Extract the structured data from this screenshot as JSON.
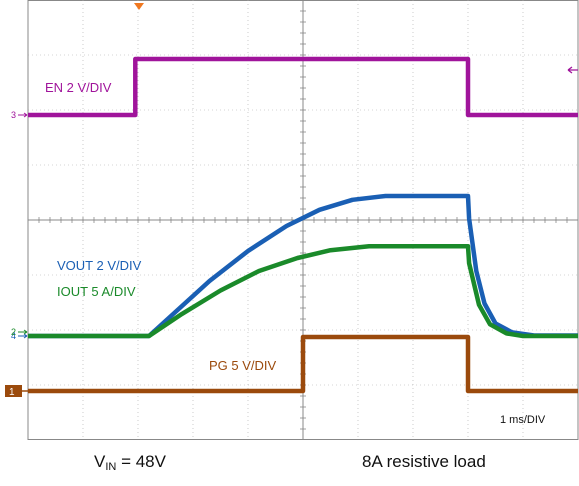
{
  "chart_data": {
    "type": "line",
    "timebase": "1 ms/DIV",
    "xlim": [
      0,
      10
    ],
    "x_unit": "ms",
    "grid": true,
    "grid_divisions": {
      "x": 10,
      "y": 8
    },
    "series": [
      {
        "label": "EN 2 V/DIV",
        "color": "#a0149b",
        "channel_marker": "3",
        "points": [
          [
            0,
            0
          ],
          [
            1.95,
            0
          ],
          [
            1.95,
            5.6
          ],
          [
            8.0,
            5.6
          ],
          [
            8.0,
            0
          ],
          [
            10,
            0
          ]
        ]
      },
      {
        "label": "VOUT 2 V/DIV",
        "color": "#1a5fb4",
        "channel_marker": "4",
        "points": [
          [
            0,
            0
          ],
          [
            2.2,
            0
          ],
          [
            2.7,
            1.0
          ],
          [
            3.3,
            2.2
          ],
          [
            4.0,
            3.4
          ],
          [
            4.7,
            4.4
          ],
          [
            5.3,
            5.05
          ],
          [
            5.9,
            5.45
          ],
          [
            6.5,
            5.6
          ],
          [
            8.0,
            5.6
          ],
          [
            8.02,
            4.7
          ],
          [
            8.15,
            2.6
          ],
          [
            8.3,
            1.3
          ],
          [
            8.5,
            0.5
          ],
          [
            8.8,
            0.15
          ],
          [
            9.2,
            0.02
          ],
          [
            10,
            0.02
          ]
        ]
      },
      {
        "label": "IOUT 5 A/DIV",
        "color": "#1a8a2a",
        "channel_marker": "2",
        "points": [
          [
            0,
            0
          ],
          [
            2.2,
            0
          ],
          [
            2.8,
            0.85
          ],
          [
            3.5,
            1.75
          ],
          [
            4.2,
            2.5
          ],
          [
            4.9,
            3.0
          ],
          [
            5.5,
            3.3
          ],
          [
            6.2,
            3.45
          ],
          [
            8.0,
            3.45
          ],
          [
            8.02,
            2.8
          ],
          [
            8.2,
            1.2
          ],
          [
            8.4,
            0.45
          ],
          [
            8.7,
            0.1
          ],
          [
            9.0,
            0
          ],
          [
            10,
            0
          ]
        ]
      },
      {
        "label": "PG 5 V/DIV",
        "color": "#9b4a0c",
        "channel_marker": "1",
        "points": [
          [
            0,
            0
          ],
          [
            5.0,
            0
          ],
          [
            5.0,
            2.0
          ],
          [
            8.0,
            2.0
          ],
          [
            8.0,
            0
          ],
          [
            10,
            0
          ]
        ]
      }
    ]
  },
  "captions": {
    "vin_prefix": "V",
    "vin_sub": "IN",
    "vin_value": " = 48V",
    "load": "8A resistive load"
  }
}
